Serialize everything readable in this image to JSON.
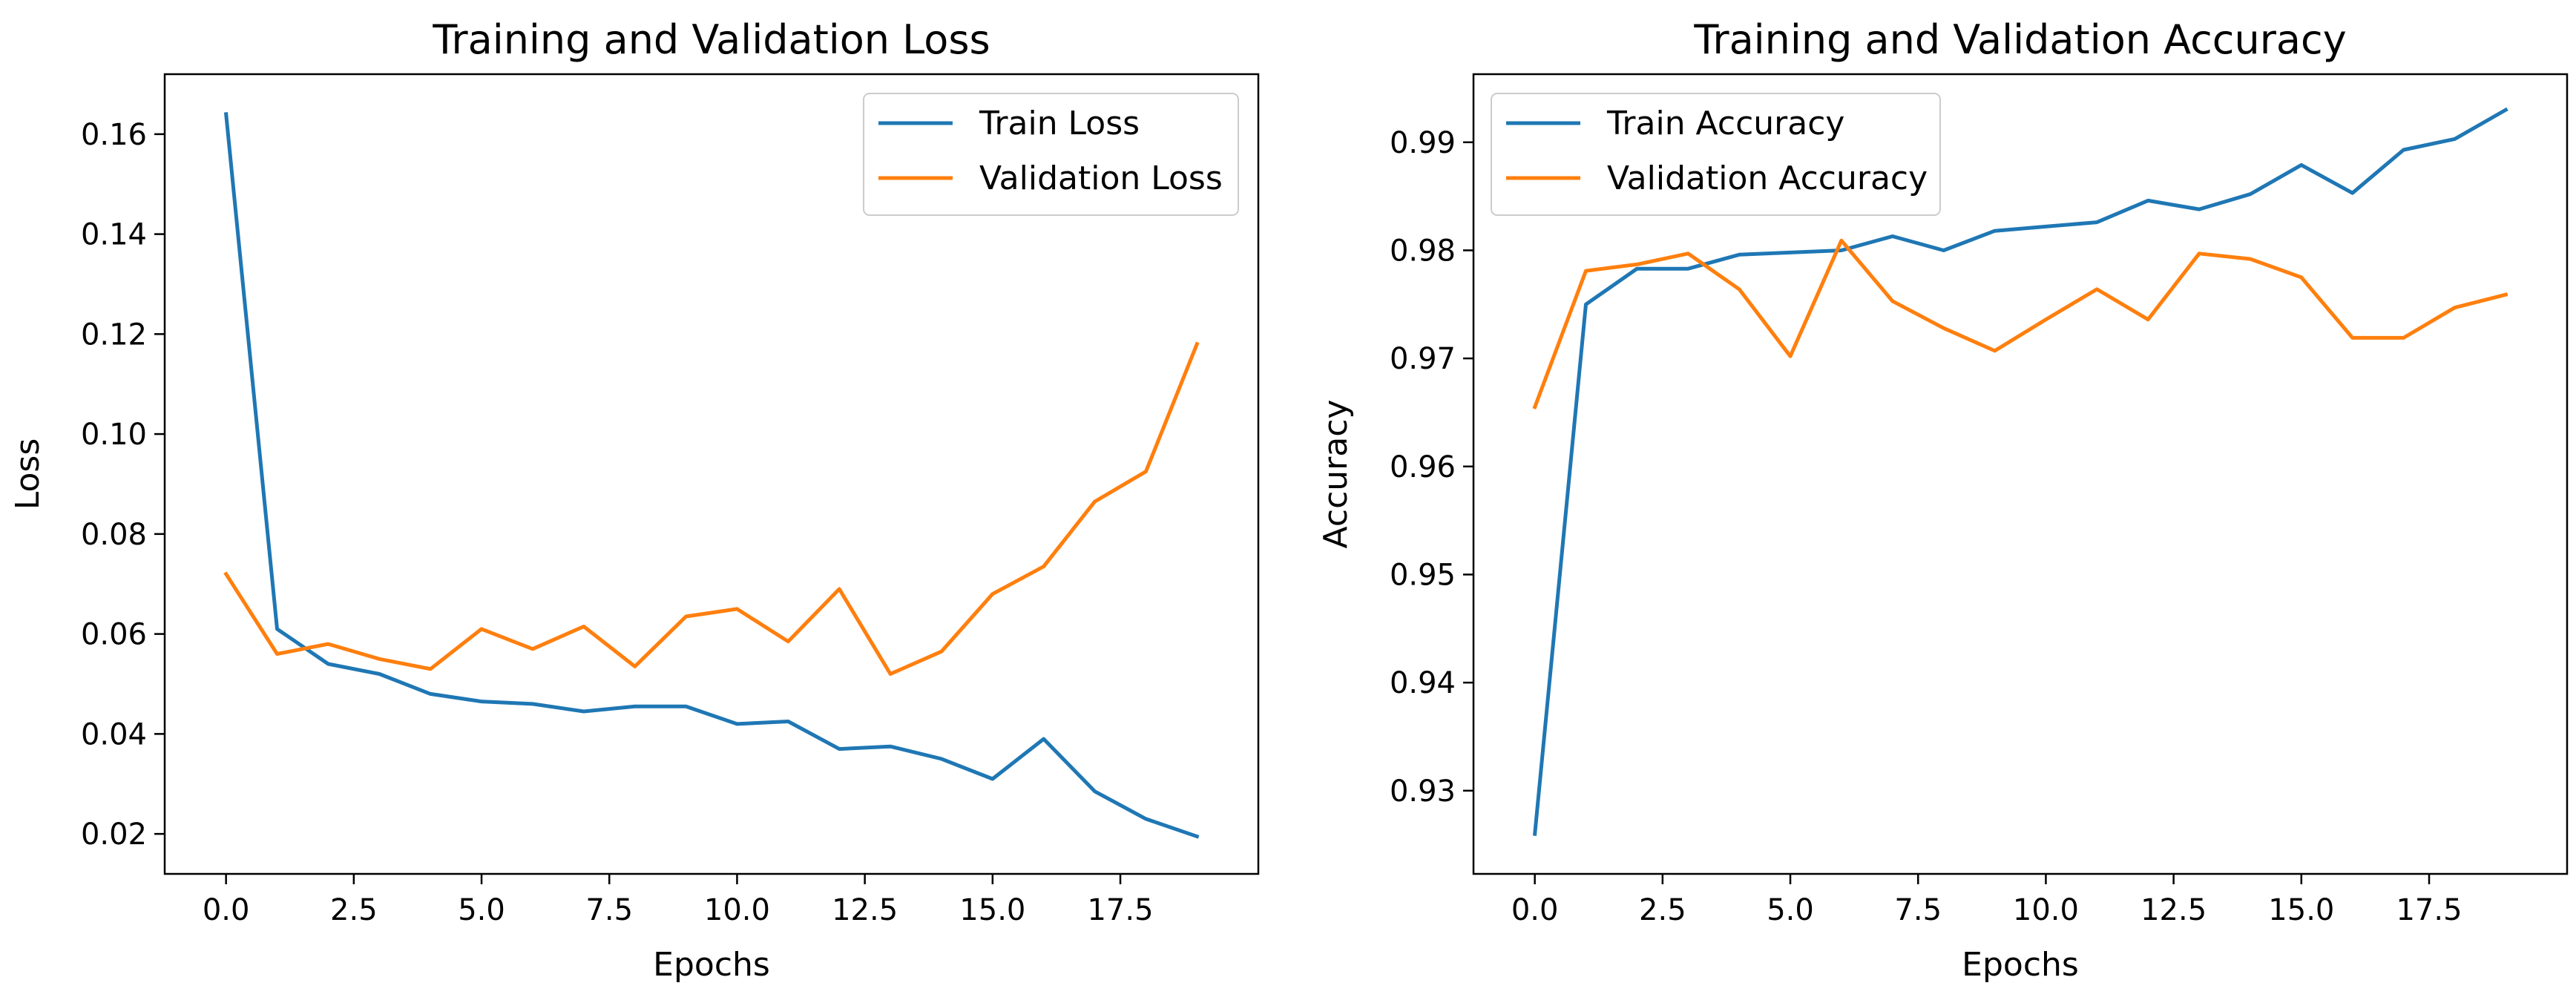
{
  "chart_data": [
    {
      "type": "line",
      "title": "Training and Validation Loss",
      "xlabel": "Epochs",
      "ylabel": "Loss",
      "xlim": [
        -1.2,
        20.2
      ],
      "ylim": [
        0.012,
        0.172
      ],
      "xticks": [
        0.0,
        2.5,
        5.0,
        7.5,
        10.0,
        12.5,
        15.0,
        17.5
      ],
      "xtick_labels": [
        "0.0",
        "2.5",
        "5.0",
        "7.5",
        "10.0",
        "12.5",
        "15.0",
        "17.5"
      ],
      "yticks": [
        0.02,
        0.04,
        0.06,
        0.08,
        0.1,
        0.12,
        0.14,
        0.16
      ],
      "ytick_labels": [
        "0.02",
        "0.04",
        "0.06",
        "0.08",
        "0.10",
        "0.12",
        "0.14",
        "0.16"
      ],
      "legend_position": "top-right",
      "x": [
        0,
        1,
        2,
        3,
        4,
        5,
        6,
        7,
        8,
        9,
        10,
        11,
        12,
        13,
        14,
        15,
        16,
        17,
        18,
        19
      ],
      "series": [
        {
          "name": "Train Loss",
          "color": "#1f77b4",
          "values": [
            0.164,
            0.061,
            0.054,
            0.052,
            0.048,
            0.0465,
            0.046,
            0.0445,
            0.0455,
            0.0455,
            0.042,
            0.0425,
            0.037,
            0.0375,
            0.035,
            0.031,
            0.039,
            0.0285,
            0.023,
            0.0195
          ]
        },
        {
          "name": "Validation Loss",
          "color": "#ff7f0e",
          "values": [
            0.072,
            0.056,
            0.058,
            0.055,
            0.053,
            0.061,
            0.057,
            0.0615,
            0.0535,
            0.0635,
            0.065,
            0.0585,
            0.069,
            0.052,
            0.0565,
            0.068,
            0.0735,
            0.0865,
            0.0925,
            0.118
          ]
        }
      ]
    },
    {
      "type": "line",
      "title": "Training and Validation Accuracy",
      "xlabel": "Epochs",
      "ylabel": "Accuracy",
      "xlim": [
        -1.2,
        20.2
      ],
      "ylim": [
        0.9223,
        0.9963
      ],
      "xticks": [
        0.0,
        2.5,
        5.0,
        7.5,
        10.0,
        12.5,
        15.0,
        17.5
      ],
      "xtick_labels": [
        "0.0",
        "2.5",
        "5.0",
        "7.5",
        "10.0",
        "12.5",
        "15.0",
        "17.5"
      ],
      "yticks": [
        0.93,
        0.94,
        0.95,
        0.96,
        0.97,
        0.98,
        0.99
      ],
      "ytick_labels": [
        "0.93",
        "0.94",
        "0.95",
        "0.96",
        "0.97",
        "0.98",
        "0.99"
      ],
      "legend_position": "top-left",
      "x": [
        0,
        1,
        2,
        3,
        4,
        5,
        6,
        7,
        8,
        9,
        10,
        11,
        12,
        13,
        14,
        15,
        16,
        17,
        18,
        19
      ],
      "series": [
        {
          "name": "Train Accuracy",
          "color": "#1f77b4",
          "values": [
            0.926,
            0.975,
            0.9783,
            0.9783,
            0.9796,
            0.9798,
            0.98,
            0.9813,
            0.98,
            0.9818,
            0.9822,
            0.9826,
            0.9846,
            0.9838,
            0.9852,
            0.9879,
            0.9853,
            0.9893,
            0.9903,
            0.993
          ]
        },
        {
          "name": "Validation Accuracy",
          "color": "#ff7f0e",
          "values": [
            0.9655,
            0.9781,
            0.9787,
            0.9797,
            0.9764,
            0.9702,
            0.9809,
            0.9753,
            0.9728,
            0.9707,
            0.9736,
            0.9764,
            0.9736,
            0.9797,
            0.9792,
            0.9775,
            0.9719,
            0.9719,
            0.9747,
            0.9759
          ]
        }
      ]
    }
  ]
}
